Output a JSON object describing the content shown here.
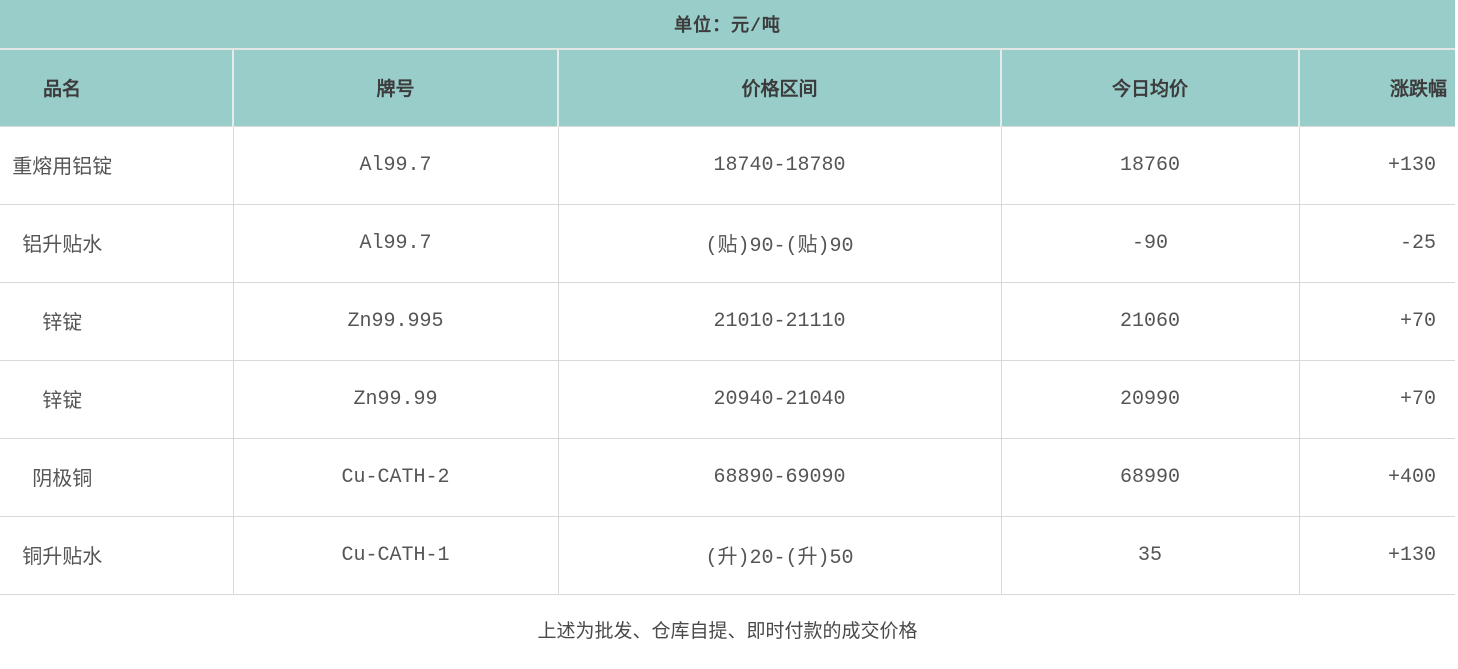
{
  "unit_label": "单位：元/吨",
  "footer_note": "上述为批发、仓库自提、即时付款的成交价格",
  "colors": {
    "band_teal": "#99cdca",
    "header_text": "#3c3c3c",
    "body_text": "#555555",
    "row_border": "#d9d9d9",
    "header_separator": "#e3ecea"
  },
  "chart_data": {
    "type": "table",
    "title": "单位：元/吨",
    "columns": [
      "品名",
      "牌号",
      "价格区间",
      "今日均价",
      "涨跌幅"
    ],
    "rows": [
      [
        "重熔用铝锭",
        "Al99.7",
        "18740-18780",
        "18760",
        "+130"
      ],
      [
        "铝升贴水",
        "Al99.7",
        "(贴)90-(贴)90",
        "-90",
        "-25"
      ],
      [
        "锌锭",
        "Zn99.995",
        "21010-21110",
        "21060",
        "+70"
      ],
      [
        "锌锭",
        "Zn99.99",
        "20940-21040",
        "20990",
        "+70"
      ],
      [
        "阴极铜",
        "Cu-CATH-2",
        "68890-69090",
        "68990",
        "+400"
      ],
      [
        "铜升贴水",
        "Cu-CATH-1",
        "(升)20-(升)50",
        "35",
        "+130"
      ]
    ],
    "footnote": "上述为批发、仓库自提、即时付款的成交价格"
  }
}
